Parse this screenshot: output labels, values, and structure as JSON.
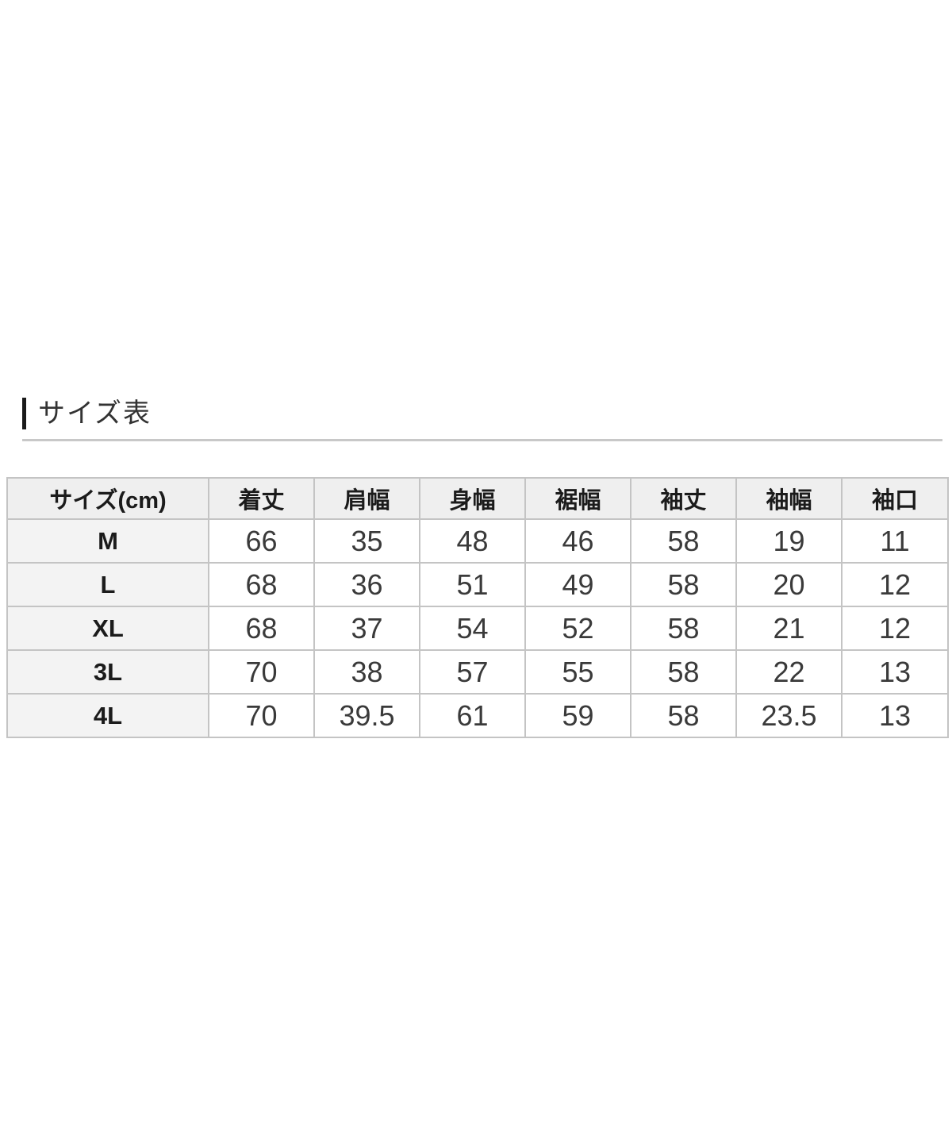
{
  "section": {
    "title": "サイズ表"
  },
  "table": {
    "columns": [
      "サイズ(cm)",
      "着丈",
      "肩幅",
      "身幅",
      "裾幅",
      "袖丈",
      "袖幅",
      "袖口"
    ],
    "rows": [
      {
        "label": "M",
        "values": [
          "66",
          "35",
          "48",
          "46",
          "58",
          "19",
          "11"
        ]
      },
      {
        "label": "L",
        "values": [
          "68",
          "36",
          "51",
          "49",
          "58",
          "20",
          "12"
        ]
      },
      {
        "label": "XL",
        "values": [
          "68",
          "37",
          "54",
          "52",
          "58",
          "21",
          "12"
        ]
      },
      {
        "label": "3L",
        "values": [
          "70",
          "38",
          "57",
          "55",
          "58",
          "22",
          "13"
        ]
      },
      {
        "label": "4L",
        "values": [
          "70",
          "39.5",
          "61",
          "59",
          "58",
          "23.5",
          "13"
        ]
      }
    ]
  },
  "colors": {
    "accent": "#1a1a1a",
    "divider": "#c8c8c8",
    "table-border": "#c4c4c4",
    "header-bg": "#efefef",
    "label-bg": "#f3f3f3"
  }
}
